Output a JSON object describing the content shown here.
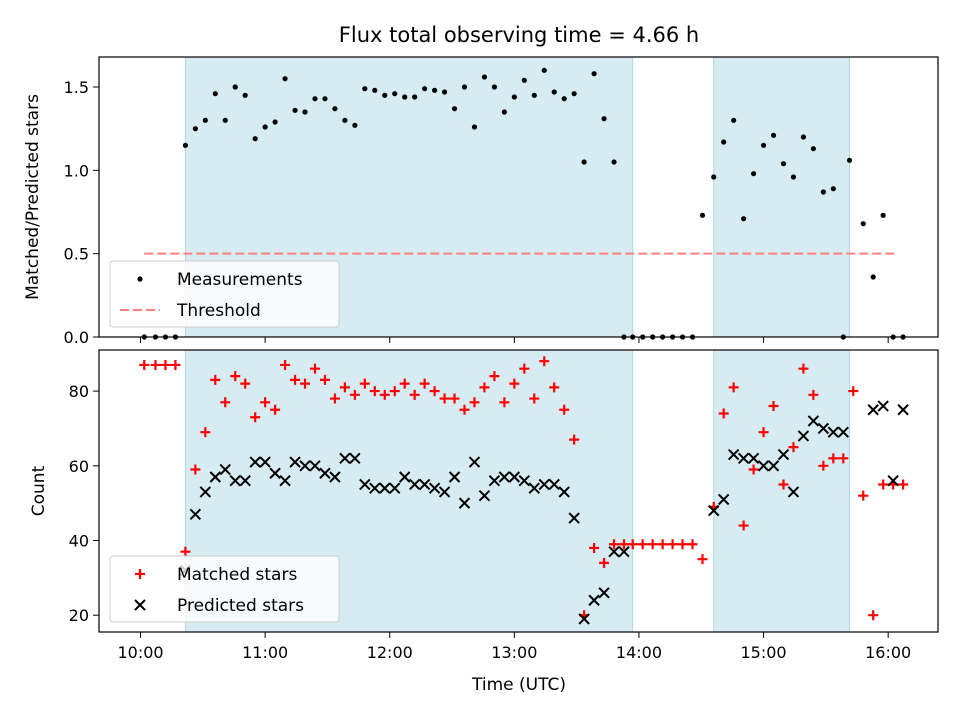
{
  "title": "Flux total observing time = 4.66 h",
  "xlabel": "Time (UTC)",
  "xticks": [
    "10:00",
    "11:00",
    "12:00",
    "13:00",
    "14:00",
    "15:00",
    "16:00"
  ],
  "colors": {
    "shade": "#add8e6",
    "threshold": "#ff7f7f",
    "matched": "#ff0000",
    "predicted": "#000000",
    "measure": "#000000"
  },
  "chart_data": [
    {
      "type": "scatter",
      "ylabel": "Matched/Predicted stars",
      "xlim": [
        "09:40",
        "16:24"
      ],
      "ylim": [
        0,
        1.68
      ],
      "yticks": [
        "0.0",
        "0.5",
        "1.0",
        "1.5"
      ],
      "x_unit": "hours (UTC, decimal)",
      "shaded_ranges": [
        [
          10.36,
          13.95
        ],
        [
          14.6,
          15.69
        ]
      ],
      "threshold": {
        "name": "Threshold",
        "y": 0.5,
        "x_range": [
          10.03,
          16.07
        ]
      },
      "legend": {
        "placement": "lower-left",
        "entries": [
          "Measurements",
          "Threshold"
        ]
      },
      "series": [
        {
          "name": "Measurements",
          "x": [
            10.03,
            10.12,
            10.2,
            10.28,
            10.36,
            10.44,
            10.52,
            10.6,
            10.68,
            10.76,
            10.84,
            10.92,
            11.0,
            11.08,
            11.16,
            11.24,
            11.32,
            11.4,
            11.48,
            11.56,
            11.64,
            11.72,
            11.8,
            11.88,
            11.96,
            12.04,
            12.12,
            12.2,
            12.28,
            12.36,
            12.44,
            12.52,
            12.6,
            12.68,
            12.76,
            12.84,
            12.92,
            13.0,
            13.08,
            13.16,
            13.24,
            13.32,
            13.4,
            13.48,
            13.56,
            13.64,
            13.72,
            13.8,
            13.88,
            13.95,
            14.03,
            14.11,
            14.19,
            14.27,
            14.35,
            14.43,
            14.51,
            14.6,
            14.68,
            14.76,
            14.84,
            14.92,
            15.0,
            15.08,
            15.16,
            15.24,
            15.32,
            15.4,
            15.48,
            15.56,
            15.64,
            15.69,
            15.8,
            15.88,
            15.96,
            16.04,
            16.12
          ],
          "y": [
            0,
            0,
            0,
            0,
            1.15,
            1.25,
            1.3,
            1.46,
            1.3,
            1.5,
            1.45,
            1.19,
            1.26,
            1.29,
            1.55,
            1.36,
            1.35,
            1.43,
            1.43,
            1.37,
            1.3,
            1.27,
            1.49,
            1.48,
            1.45,
            1.46,
            1.44,
            1.44,
            1.49,
            1.48,
            1.47,
            1.37,
            1.5,
            1.26,
            1.56,
            1.5,
            1.35,
            1.44,
            1.54,
            1.45,
            1.6,
            1.47,
            1.43,
            1.46,
            1.05,
            1.58,
            1.31,
            1.05,
            0,
            0,
            0,
            0,
            0,
            0,
            0,
            0,
            0.73,
            0.96,
            1.17,
            1.3,
            0.71,
            0.98,
            1.15,
            1.21,
            1.04,
            0.96,
            1.2,
            1.13,
            0.87,
            0.89,
            0,
            1.06,
            0.68,
            0.36,
            0.73,
            0,
            0
          ]
        }
      ]
    },
    {
      "type": "scatter",
      "ylabel": "Count",
      "xlim": [
        "09:40",
        "16:24"
      ],
      "ylim": [
        15.5,
        91
      ],
      "yticks": [
        "20",
        "40",
        "60",
        "80"
      ],
      "x_unit": "hours (UTC, decimal)",
      "shaded_ranges": [
        [
          10.36,
          13.95
        ],
        [
          14.6,
          15.69
        ]
      ],
      "legend": {
        "placement": "lower-left",
        "entries": [
          "Matched stars",
          "Predicted stars"
        ]
      },
      "series": [
        {
          "name": "Matched stars",
          "x": [
            10.03,
            10.12,
            10.2,
            10.28,
            10.36,
            10.44,
            10.52,
            10.6,
            10.68,
            10.76,
            10.84,
            10.92,
            11.0,
            11.08,
            11.16,
            11.24,
            11.32,
            11.4,
            11.48,
            11.56,
            11.64,
            11.72,
            11.8,
            11.88,
            11.96,
            12.04,
            12.12,
            12.2,
            12.28,
            12.36,
            12.44,
            12.52,
            12.6,
            12.68,
            12.76,
            12.84,
            12.92,
            13.0,
            13.08,
            13.16,
            13.24,
            13.32,
            13.4,
            13.48,
            13.56,
            13.64,
            13.72,
            13.8,
            13.88,
            13.95,
            14.03,
            14.11,
            14.19,
            14.27,
            14.35,
            14.43,
            14.51,
            14.6,
            14.68,
            14.76,
            14.84,
            14.92,
            15.0,
            15.08,
            15.16,
            15.24,
            15.32,
            15.4,
            15.48,
            15.56,
            15.64,
            15.72,
            15.8,
            15.88,
            15.96,
            16.04,
            16.12
          ],
          "y": [
            87,
            87,
            87,
            87,
            37,
            59,
            69,
            83,
            77,
            84,
            82,
            73,
            77,
            75,
            87,
            83,
            82,
            86,
            83,
            78,
            81,
            79,
            82,
            80,
            79,
            80,
            82,
            79,
            82,
            80,
            78,
            78,
            75,
            77,
            81,
            84,
            77,
            82,
            86,
            78,
            88,
            81,
            75,
            67,
            20,
            38,
            34,
            39,
            39,
            39,
            39,
            39,
            39,
            39,
            39,
            39,
            35,
            49,
            74,
            81,
            44,
            59,
            69,
            76,
            55,
            65,
            86,
            79,
            60,
            62,
            62,
            80,
            52,
            20,
            55,
            55,
            55
          ]
        },
        {
          "name": "Predicted stars",
          "x": [
            10.36,
            10.44,
            10.52,
            10.6,
            10.68,
            10.76,
            10.84,
            10.92,
            11.0,
            11.08,
            11.16,
            11.24,
            11.32,
            11.4,
            11.48,
            11.56,
            11.64,
            11.72,
            11.8,
            11.88,
            11.96,
            12.04,
            12.12,
            12.2,
            12.28,
            12.36,
            12.44,
            12.52,
            12.6,
            12.68,
            12.76,
            12.84,
            12.92,
            13.0,
            13.08,
            13.16,
            13.24,
            13.32,
            13.4,
            13.48,
            13.56,
            13.64,
            13.72,
            13.8,
            13.88,
            14.6,
            14.68,
            14.76,
            14.84,
            14.92,
            15.0,
            15.08,
            15.16,
            15.24,
            15.32,
            15.4,
            15.48,
            15.56,
            15.64,
            15.88,
            15.96,
            16.04,
            16.12
          ],
          "y": [
            32,
            47,
            53,
            57,
            59,
            56,
            56,
            61,
            61,
            58,
            56,
            61,
            60,
            60,
            58,
            57,
            62,
            62,
            55,
            54,
            54,
            54,
            57,
            55,
            55,
            54,
            53,
            57,
            50,
            61,
            52,
            56,
            57,
            57,
            56,
            54,
            55,
            55,
            53,
            46,
            19,
            24,
            26,
            37,
            37,
            48,
            51,
            63,
            62,
            62,
            60,
            60,
            63,
            53,
            68,
            72,
            70,
            69,
            69,
            75,
            76,
            56,
            75
          ]
        }
      ]
    }
  ]
}
